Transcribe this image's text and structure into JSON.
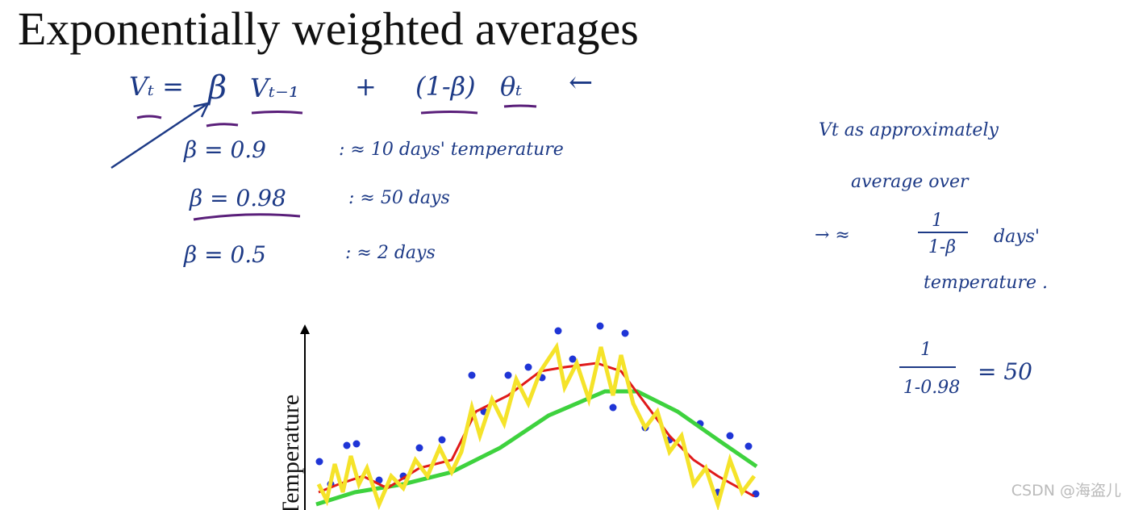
{
  "title": "Exponentially weighted averages",
  "formula": {
    "lhs": "Vₜ =",
    "beta": "β",
    "prev": "Vₜ₋₁",
    "plus": "+",
    "one_minus_beta": "(1-β)",
    "theta": "θₜ",
    "arrow": "←"
  },
  "rows": [
    {
      "beta": "β = 0.9",
      "approx": ":  ≈ 10 days' temperature"
    },
    {
      "beta": "β = 0.98",
      "approx": ":  ≈ 50 days"
    },
    {
      "beta": "β = 0.5",
      "approx": ":  ≈ 2 days"
    }
  ],
  "side_note": {
    "line1": "Vt  as  approximately",
    "line2": "average  over",
    "arrow": "→  ≈",
    "numerator": "1",
    "denominator": "1-β",
    "unit": "days'",
    "line4": "temperature ."
  },
  "example": {
    "numerator": "1",
    "denominator": "1-0.98",
    "result": "= 50"
  },
  "plot": {
    "y_label": "Temperature"
  },
  "watermark": "CSDN @海盗儿"
}
